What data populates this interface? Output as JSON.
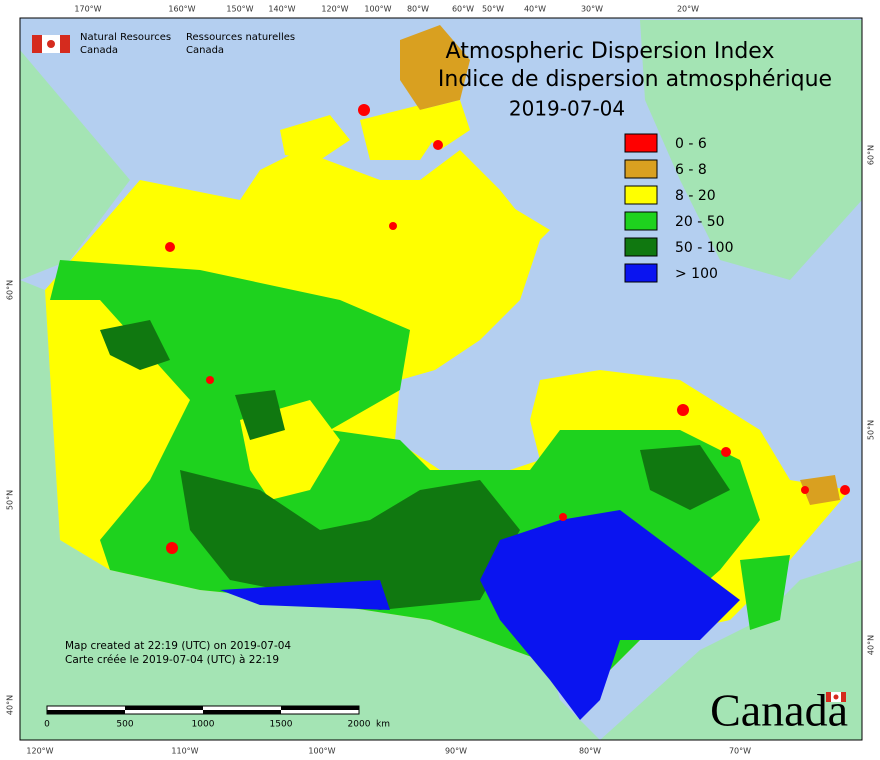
{
  "header": {
    "title": "Atmospheric Dispersion Index",
    "subtitle": "Indice de dispersion atmosphérique",
    "date": "2019-07-04"
  },
  "agency": {
    "en": [
      "Natural Resources",
      "Canada"
    ],
    "fr": [
      "Ressources naturelles",
      "Canada"
    ]
  },
  "legend": [
    {
      "label": "0 - 6",
      "color": "#ff0000"
    },
    {
      "label": "6 - 8",
      "color": "#d9a020"
    },
    {
      "label": "8 - 20",
      "color": "#ffff00"
    },
    {
      "label": "20 - 50",
      "color": "#1ed21e"
    },
    {
      "label": "50 - 100",
      "color": "#107810"
    },
    {
      "label": "> 100",
      "color": "#0a14f0"
    }
  ],
  "notes": [
    "Map created at 22:19 (UTC) on 2019-07-04",
    "Carte créée le 2019-07-04 (UTC) à 22:19"
  ],
  "scale": {
    "ticks": [
      "0",
      "500",
      "1000",
      "1500",
      "2000"
    ],
    "unit": "km"
  },
  "top_labels": [
    "170°W",
    "160°W",
    "150°W",
    "140°W",
    "120°W",
    "100°W",
    "80°W",
    "60°W",
    "50°W",
    "40°W",
    "30°W",
    "20°W"
  ],
  "bottom_labels": [
    "120°W",
    "110°W",
    "100°W",
    "90°W",
    "80°W",
    "70°W"
  ],
  "left_labels": [
    "60°N",
    "50°N",
    "40°N"
  ],
  "right_labels": [
    "60°N",
    "50°N",
    "40°N"
  ],
  "wordmark": "Canada"
}
